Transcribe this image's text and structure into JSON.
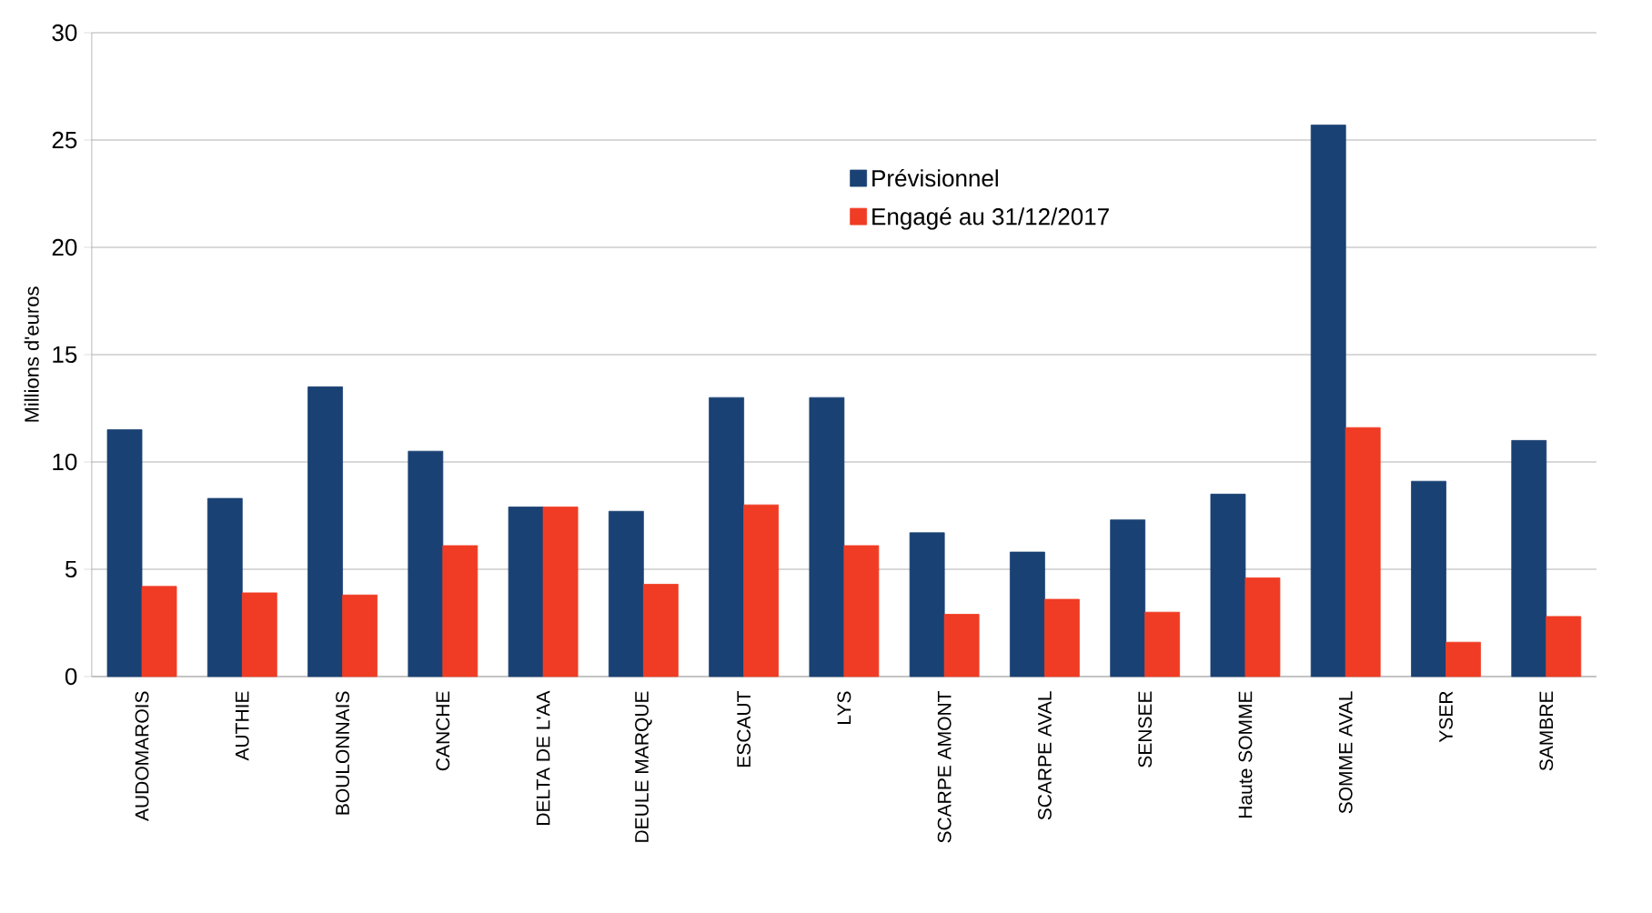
{
  "chart_data": {
    "type": "bar",
    "ylabel": "Millions d'euros",
    "categories": [
      "AUDOMAROIS",
      "AUTHIE",
      "BOULONNAIS",
      "CANCHE",
      "DELTA DE L'AA",
      "DEULE MARQUE",
      "ESCAUT",
      "LYS",
      "SCARPE AMONT",
      "SCARPE AVAL",
      "SENSEE",
      "Haute SOMME",
      "SOMME AVAL",
      "YSER",
      "SAMBRE"
    ],
    "series": [
      {
        "name": "Prévisionnel",
        "color": "#1a4173",
        "values": [
          11.5,
          8.3,
          13.5,
          10.5,
          7.9,
          7.7,
          13.0,
          13.0,
          6.7,
          5.8,
          7.3,
          8.5,
          25.7,
          9.1,
          11.0
        ]
      },
      {
        "name": "Engagé au 31/12/2017",
        "color": "#f03c24",
        "values": [
          4.2,
          3.9,
          3.8,
          6.1,
          7.9,
          4.3,
          8.0,
          6.1,
          2.9,
          3.6,
          3.0,
          4.6,
          11.6,
          1.6,
          2.8
        ]
      }
    ],
    "ylim": [
      0,
      30
    ],
    "yticks": [
      0,
      5,
      10,
      15,
      20,
      25,
      30
    ],
    "grid": "y",
    "legend": "top"
  }
}
